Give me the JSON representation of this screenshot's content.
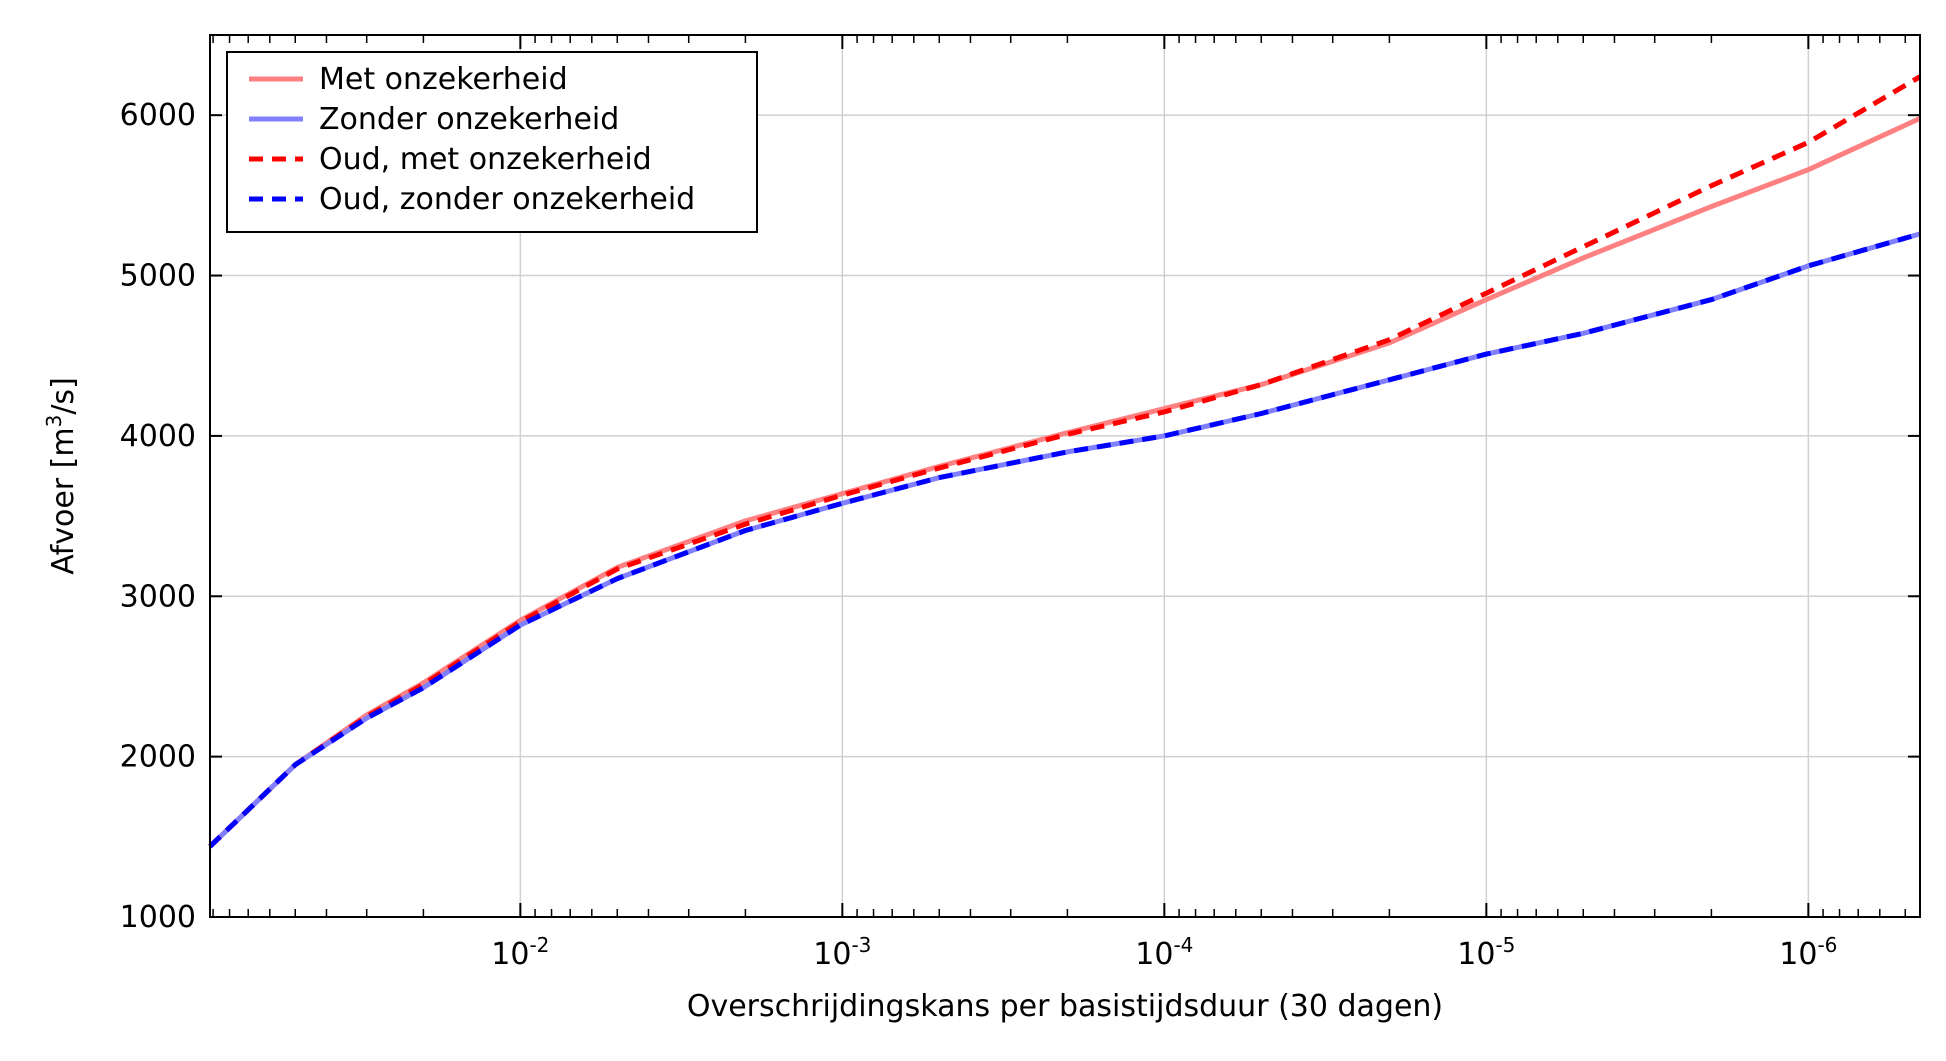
{
  "chart_data": {
    "type": "line",
    "xlabel": "Overschrijdingskans per basistijdsduur (30 dagen)",
    "ylabel": {
      "prefix": "Afvoer [m",
      "sup": "3",
      "suffix": "/s]"
    },
    "x_scale": "log-reversed",
    "xlim": [
      0.092,
      4.5e-07
    ],
    "ylim": [
      1000,
      6500
    ],
    "grid": true,
    "legend_placement": "top-left",
    "x_ticks": [
      {
        "value": 0.01,
        "base": "10",
        "exp": "-2"
      },
      {
        "value": 0.001,
        "base": "10",
        "exp": "-3"
      },
      {
        "value": 0.0001,
        "base": "10",
        "exp": "-4"
      },
      {
        "value": 1e-05,
        "base": "10",
        "exp": "-5"
      },
      {
        "value": 1e-06,
        "base": "10",
        "exp": "-6"
      }
    ],
    "y_ticks": [
      1000,
      2000,
      3000,
      4000,
      5000,
      6000
    ],
    "series": [
      {
        "name": "Met onzekerheid",
        "color": "#ff8080",
        "dash": "solid",
        "x": [
          0.092,
          0.05,
          0.03,
          0.02,
          0.01,
          0.005,
          0.002,
          0.001,
          0.0005,
          0.0002,
          0.0001,
          5e-05,
          2e-05,
          1e-05,
          5e-06,
          2e-06,
          1e-06,
          4.5e-07
        ],
        "y": [
          1440,
          1950,
          2260,
          2460,
          2850,
          3180,
          3470,
          3640,
          3810,
          4020,
          4170,
          4320,
          4580,
          4850,
          5110,
          5430,
          5660,
          5980
        ]
      },
      {
        "name": "Zonder onzekerheid",
        "color": "#8080ff",
        "dash": "solid",
        "x": [
          0.092,
          0.05,
          0.03,
          0.02,
          0.01,
          0.005,
          0.002,
          0.001,
          0.0005,
          0.0002,
          0.0001,
          5e-05,
          2e-05,
          1e-05,
          5e-06,
          2e-06,
          1e-06,
          4.5e-07
        ],
        "y": [
          1440,
          1950,
          2240,
          2430,
          2820,
          3110,
          3410,
          3580,
          3740,
          3900,
          4000,
          4140,
          4350,
          4510,
          4640,
          4850,
          5060,
          5260
        ]
      },
      {
        "name": "Oud, met onzekerheid",
        "color": "#ff0000",
        "dash": "dashed",
        "x": [
          0.092,
          0.05,
          0.03,
          0.02,
          0.01,
          0.005,
          0.002,
          0.001,
          0.0005,
          0.0002,
          0.0001,
          5e-05,
          2e-05,
          1e-05,
          5e-06,
          2e-06,
          1e-06,
          4.5e-07
        ],
        "y": [
          1440,
          1950,
          2250,
          2450,
          2840,
          3170,
          3450,
          3630,
          3800,
          4010,
          4150,
          4320,
          4600,
          4890,
          5180,
          5560,
          5830,
          6240
        ]
      },
      {
        "name": "Oud, zonder onzekerheid",
        "color": "#0000ff",
        "dash": "dashed",
        "x": [
          0.092,
          0.05,
          0.03,
          0.02,
          0.01,
          0.005,
          0.002,
          0.001,
          0.0005,
          0.0002,
          0.0001,
          5e-05,
          2e-05,
          1e-05,
          5e-06,
          2e-06,
          1e-06,
          4.5e-07
        ],
        "y": [
          1440,
          1950,
          2240,
          2430,
          2820,
          3110,
          3410,
          3580,
          3740,
          3900,
          4000,
          4140,
          4350,
          4510,
          4640,
          4850,
          5060,
          5260
        ]
      }
    ]
  }
}
